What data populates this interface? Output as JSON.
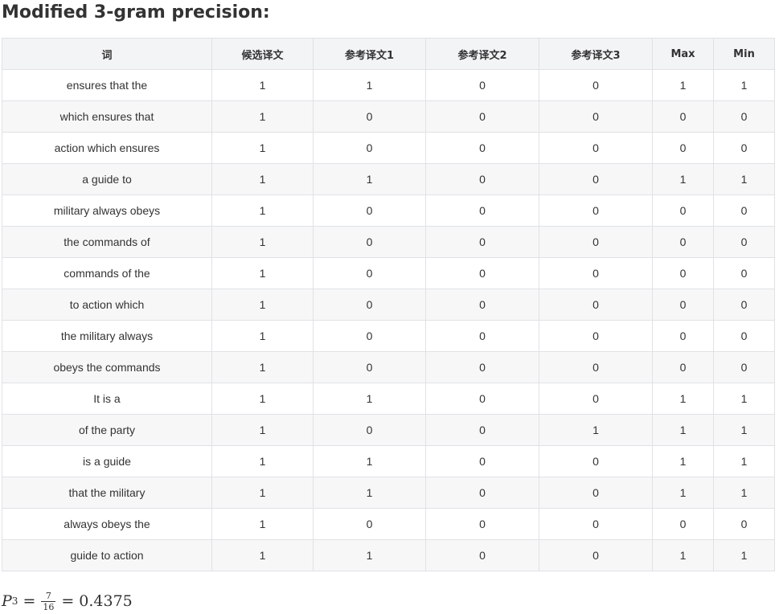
{
  "heading": "Modified 3-gram precision:",
  "table": {
    "headers": [
      "词",
      "候选译文",
      "参考译文1",
      "参考译文2",
      "参考译文3",
      "Max",
      "Min"
    ],
    "rows": [
      [
        "ensures that the",
        "1",
        "1",
        "0",
        "0",
        "1",
        "1"
      ],
      [
        "which ensures that",
        "1",
        "0",
        "0",
        "0",
        "0",
        "0"
      ],
      [
        "action which ensures",
        "1",
        "0",
        "0",
        "0",
        "0",
        "0"
      ],
      [
        "a guide to",
        "1",
        "1",
        "0",
        "0",
        "1",
        "1"
      ],
      [
        "military always obeys",
        "1",
        "0",
        "0",
        "0",
        "0",
        "0"
      ],
      [
        "the commands of",
        "1",
        "0",
        "0",
        "0",
        "0",
        "0"
      ],
      [
        "commands of the",
        "1",
        "0",
        "0",
        "0",
        "0",
        "0"
      ],
      [
        "to action which",
        "1",
        "0",
        "0",
        "0",
        "0",
        "0"
      ],
      [
        "the military always",
        "1",
        "0",
        "0",
        "0",
        "0",
        "0"
      ],
      [
        "obeys the commands",
        "1",
        "0",
        "0",
        "0",
        "0",
        "0"
      ],
      [
        "It is a",
        "1",
        "1",
        "0",
        "0",
        "1",
        "1"
      ],
      [
        "of the party",
        "1",
        "0",
        "0",
        "1",
        "1",
        "1"
      ],
      [
        "is a guide",
        "1",
        "1",
        "0",
        "0",
        "1",
        "1"
      ],
      [
        "that the military",
        "1",
        "1",
        "0",
        "0",
        "1",
        "1"
      ],
      [
        "always obeys the",
        "1",
        "0",
        "0",
        "0",
        "0",
        "0"
      ],
      [
        "guide to action",
        "1",
        "1",
        "0",
        "0",
        "1",
        "1"
      ]
    ]
  },
  "formula": {
    "symbol": "P",
    "subscript": "3",
    "equals": "=",
    "numerator": "7",
    "denominator": "16",
    "result": "0.4375"
  }
}
